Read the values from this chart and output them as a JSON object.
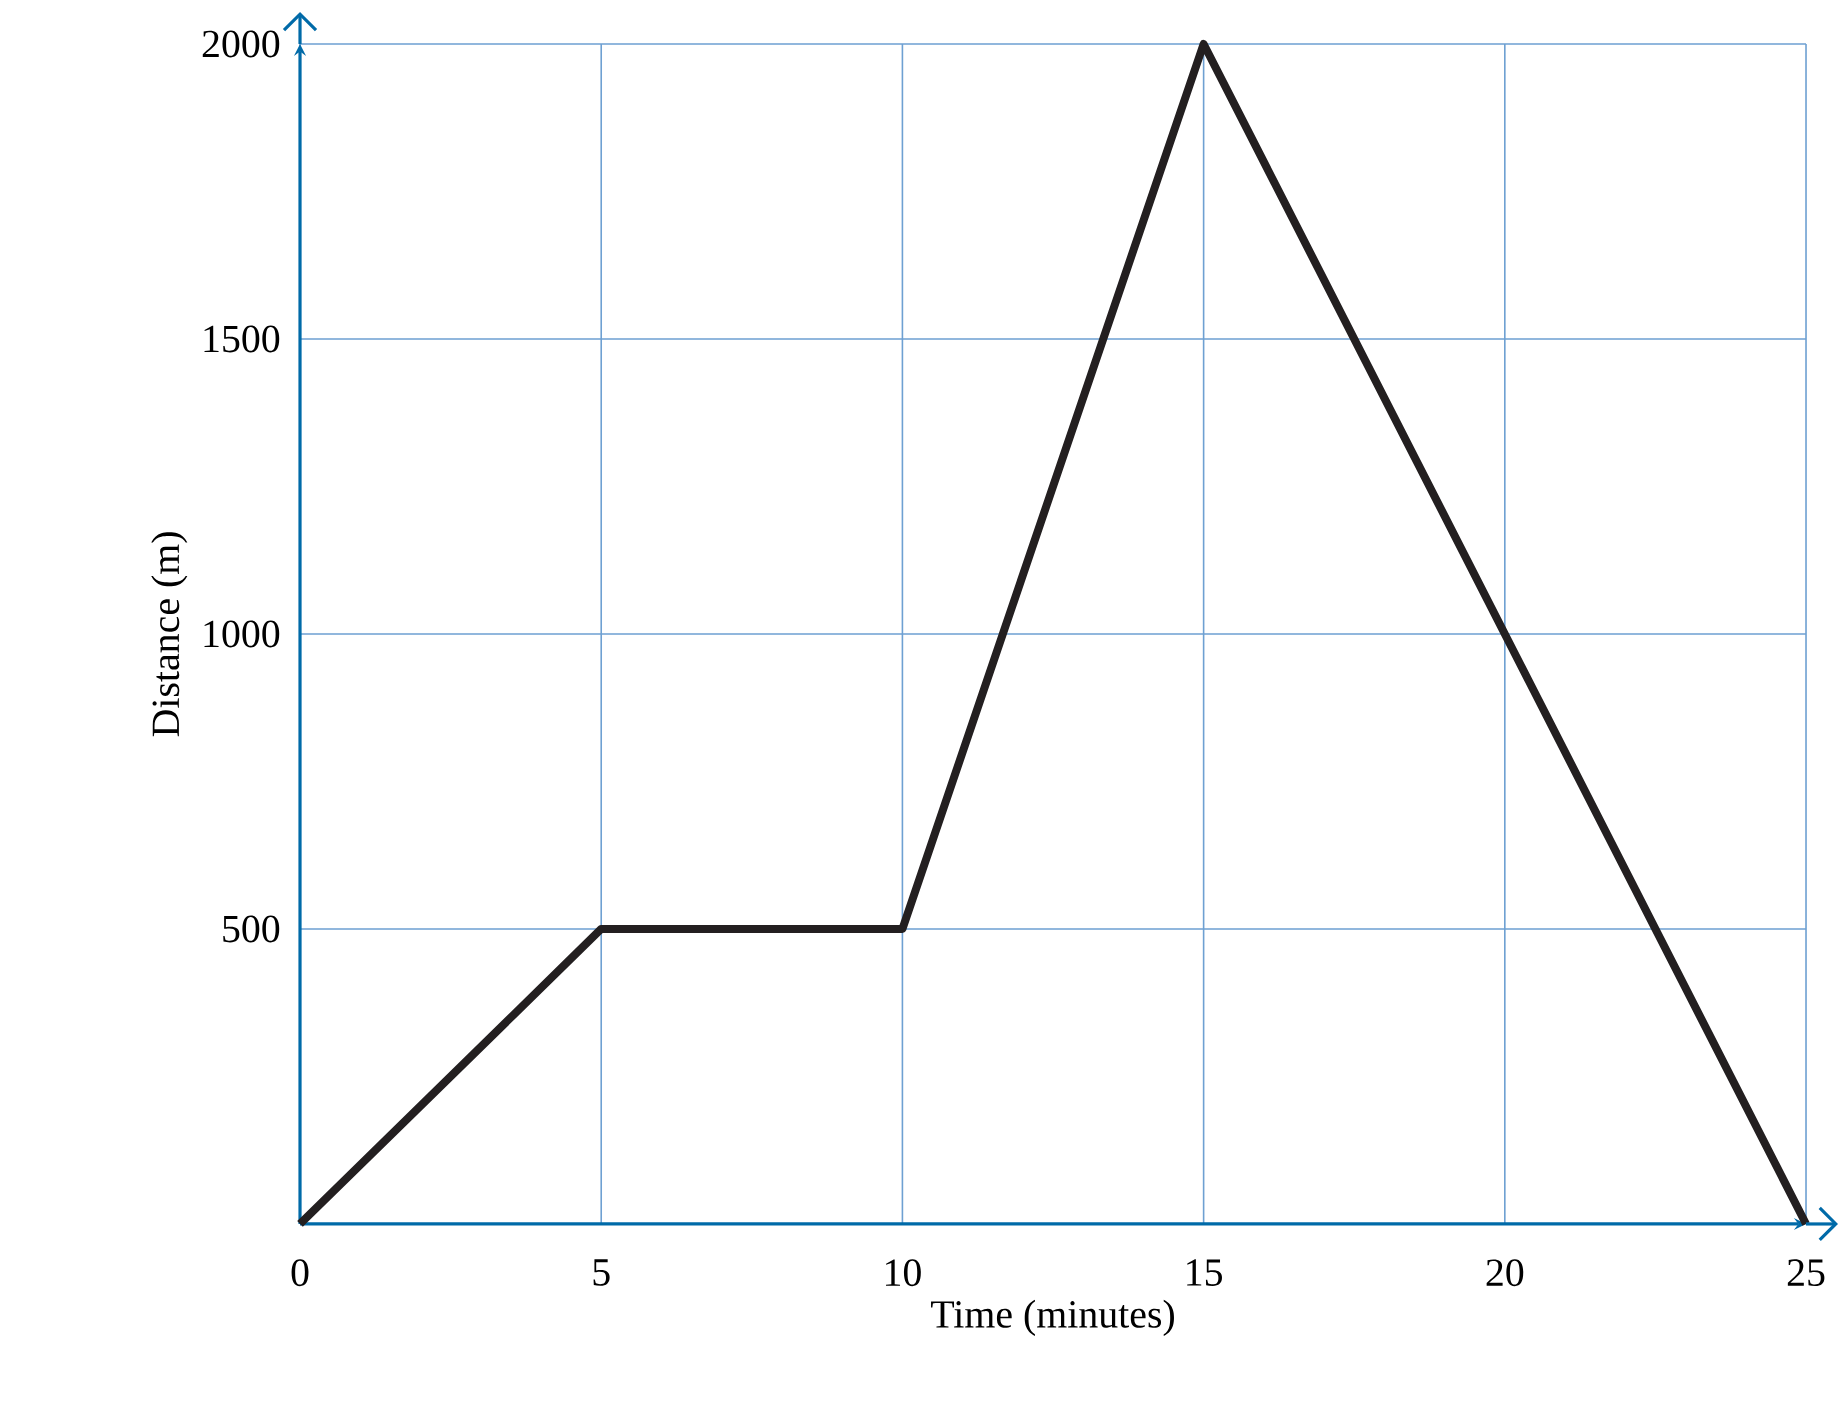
{
  "chart_data": {
    "type": "line",
    "xlabel": "Time (minutes)",
    "ylabel": "Distance (m)",
    "x": [
      0,
      5,
      10,
      15,
      25
    ],
    "series": [
      {
        "color": "#231f20",
        "values": [
          0,
          500,
          500,
          2000,
          0
        ]
      }
    ],
    "xlim": [
      0,
      25
    ],
    "ylim": [
      0,
      2000
    ],
    "xticks": [
      0,
      5,
      10,
      15,
      20,
      25
    ],
    "yticks": [
      500,
      1000,
      1500,
      2000
    ],
    "grid": true,
    "legend": false,
    "marker": "none",
    "line_style": "solid"
  }
}
